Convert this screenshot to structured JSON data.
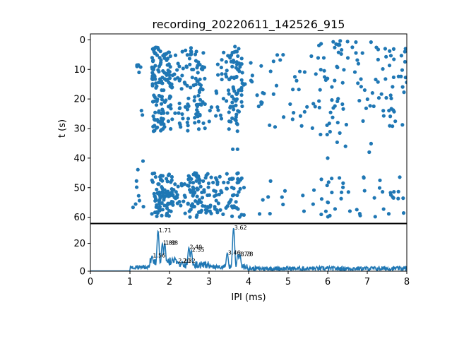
{
  "chart_data": [
    {
      "type": "scatter",
      "title": "recording_20220611_142526_915",
      "xlabel": "",
      "ylabel": "t (s)",
      "xlim": [
        0,
        8
      ],
      "ylim": [
        62,
        -2
      ],
      "y_inverted": true,
      "x_shared_with_lower_panel": true,
      "yticks": [
        "0",
        "10",
        "20",
        "30",
        "40",
        "50",
        "60"
      ],
      "marker_color": "#1f77b4",
      "grid": false,
      "clusters": [
        {
          "x_range": [
            1.08,
            1.38
          ],
          "y_range": [
            3,
            30
          ],
          "count": 7
        },
        {
          "x_range": [
            1.55,
            2.05
          ],
          "y_range": [
            2,
            31
          ],
          "count": 140
        },
        {
          "x_range": [
            2.05,
            2.45
          ],
          "y_range": [
            3,
            30
          ],
          "count": 35
        },
        {
          "x_range": [
            2.45,
            2.9
          ],
          "y_range": [
            2,
            31
          ],
          "count": 70
        },
        {
          "x_range": [
            2.9,
            3.5
          ],
          "y_range": [
            2,
            28
          ],
          "count": 25
        },
        {
          "x_range": [
            3.5,
            3.85
          ],
          "y_range": [
            2,
            31
          ],
          "count": 75
        },
        {
          "x_range": [
            3.85,
            4.4
          ],
          "y_range": [
            6,
            24
          ],
          "count": 14
        },
        {
          "x_range": [
            4.5,
            5.6
          ],
          "y_range": [
            2,
            30
          ],
          "count": 24
        },
        {
          "x_range": [
            5.6,
            7.1
          ],
          "y_range": [
            0,
            36
          ],
          "count": 70
        },
        {
          "x_range": [
            7.1,
            8.0
          ],
          "y_range": [
            2,
            30
          ],
          "count": 45
        },
        {
          "x_range": [
            1.05,
            1.35
          ],
          "y_range": [
            41,
            60
          ],
          "count": 8
        },
        {
          "x_range": [
            1.55,
            2.1
          ],
          "y_range": [
            45,
            60
          ],
          "count": 90
        },
        {
          "x_range": [
            2.1,
            2.45
          ],
          "y_range": [
            46,
            59
          ],
          "count": 20
        },
        {
          "x_range": [
            2.45,
            3.0
          ],
          "y_range": [
            45,
            60
          ],
          "count": 75
        },
        {
          "x_range": [
            3.0,
            3.45
          ],
          "y_range": [
            46,
            59
          ],
          "count": 30
        },
        {
          "x_range": [
            3.45,
            3.9
          ],
          "y_range": [
            45,
            60
          ],
          "count": 40
        },
        {
          "x_range": [
            4.1,
            5.5
          ],
          "y_range": [
            46,
            59
          ],
          "count": 10
        },
        {
          "x_range": [
            5.6,
            8.0
          ],
          "y_range": [
            46,
            60
          ],
          "count": 45
        }
      ],
      "isolated_points": [
        {
          "x": 3.6,
          "y": 37
        },
        {
          "x": 3.72,
          "y": 37
        },
        {
          "x": 6.45,
          "y": 36
        },
        {
          "x": 6.0,
          "y": 40
        },
        {
          "x": 7.05,
          "y": 38
        },
        {
          "x": 1.33,
          "y": 41
        }
      ]
    },
    {
      "type": "line",
      "title": "",
      "xlabel": "IPI (ms)",
      "ylabel": "",
      "xlim": [
        0,
        8
      ],
      "ylim": [
        0,
        34
      ],
      "xticks": [
        "0",
        "1",
        "2",
        "3",
        "4",
        "5",
        "6",
        "7",
        "8"
      ],
      "yticks": [
        "0",
        "20"
      ],
      "line_color": "#1f77b4",
      "grid": false,
      "peaks": [
        {
          "x": 1.71,
          "y": 29,
          "label": "1.71"
        },
        {
          "x": 1.56,
          "y": 11,
          "label": "1.56"
        },
        {
          "x": 1.82,
          "y": 20,
          "label": "1.82"
        },
        {
          "x": 1.88,
          "y": 20,
          "label": "1.88"
        },
        {
          "x": 2.2,
          "y": 7,
          "label": "2.20"
        },
        {
          "x": 2.32,
          "y": 7,
          "label": "2.32"
        },
        {
          "x": 2.49,
          "y": 17,
          "label": "2.49"
        },
        {
          "x": 2.55,
          "y": 15,
          "label": "2.55"
        },
        {
          "x": 3.62,
          "y": 31,
          "label": "3.62"
        },
        {
          "x": 3.46,
          "y": 13,
          "label": "3.46"
        },
        {
          "x": 3.73,
          "y": 12,
          "label": "3.73"
        },
        {
          "x": 3.78,
          "y": 12,
          "label": "3.78"
        }
      ]
    }
  ]
}
